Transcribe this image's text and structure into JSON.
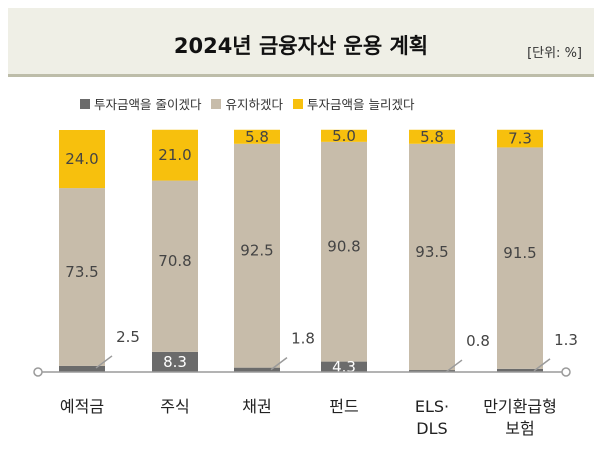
{
  "header": {
    "title": "2024년 금융자산 운용 계획",
    "unit": "[단위: %]"
  },
  "colors": {
    "reduce": "#6b6b6b",
    "maintain": "#c7bcaa",
    "increase": "#f7c00d",
    "baseline": "#9a9a9a"
  },
  "chart_data": {
    "type": "bar",
    "stacked": true,
    "title": "2024년 금융자산 운용 계획",
    "unit": "[단위: %]",
    "legend_position": "top",
    "categories": [
      [
        "예적금"
      ],
      [
        "주식"
      ],
      [
        "채권"
      ],
      [
        "펀드"
      ],
      [
        "ELS·",
        "DLS"
      ],
      [
        "만기환급형",
        "보험"
      ]
    ],
    "series": [
      {
        "name": "투자금액을 줄이겠다",
        "values": [
          2.5,
          8.3,
          1.8,
          4.3,
          0.8,
          1.3
        ]
      },
      {
        "name": "유지하겠다",
        "values": [
          73.5,
          70.8,
          92.5,
          90.8,
          93.5,
          91.5
        ]
      },
      {
        "name": "투자금액을 늘리겠다",
        "values": [
          24.0,
          21.0,
          5.8,
          5.0,
          5.8,
          7.3
        ]
      }
    ],
    "ylim": [
      0,
      100
    ]
  }
}
